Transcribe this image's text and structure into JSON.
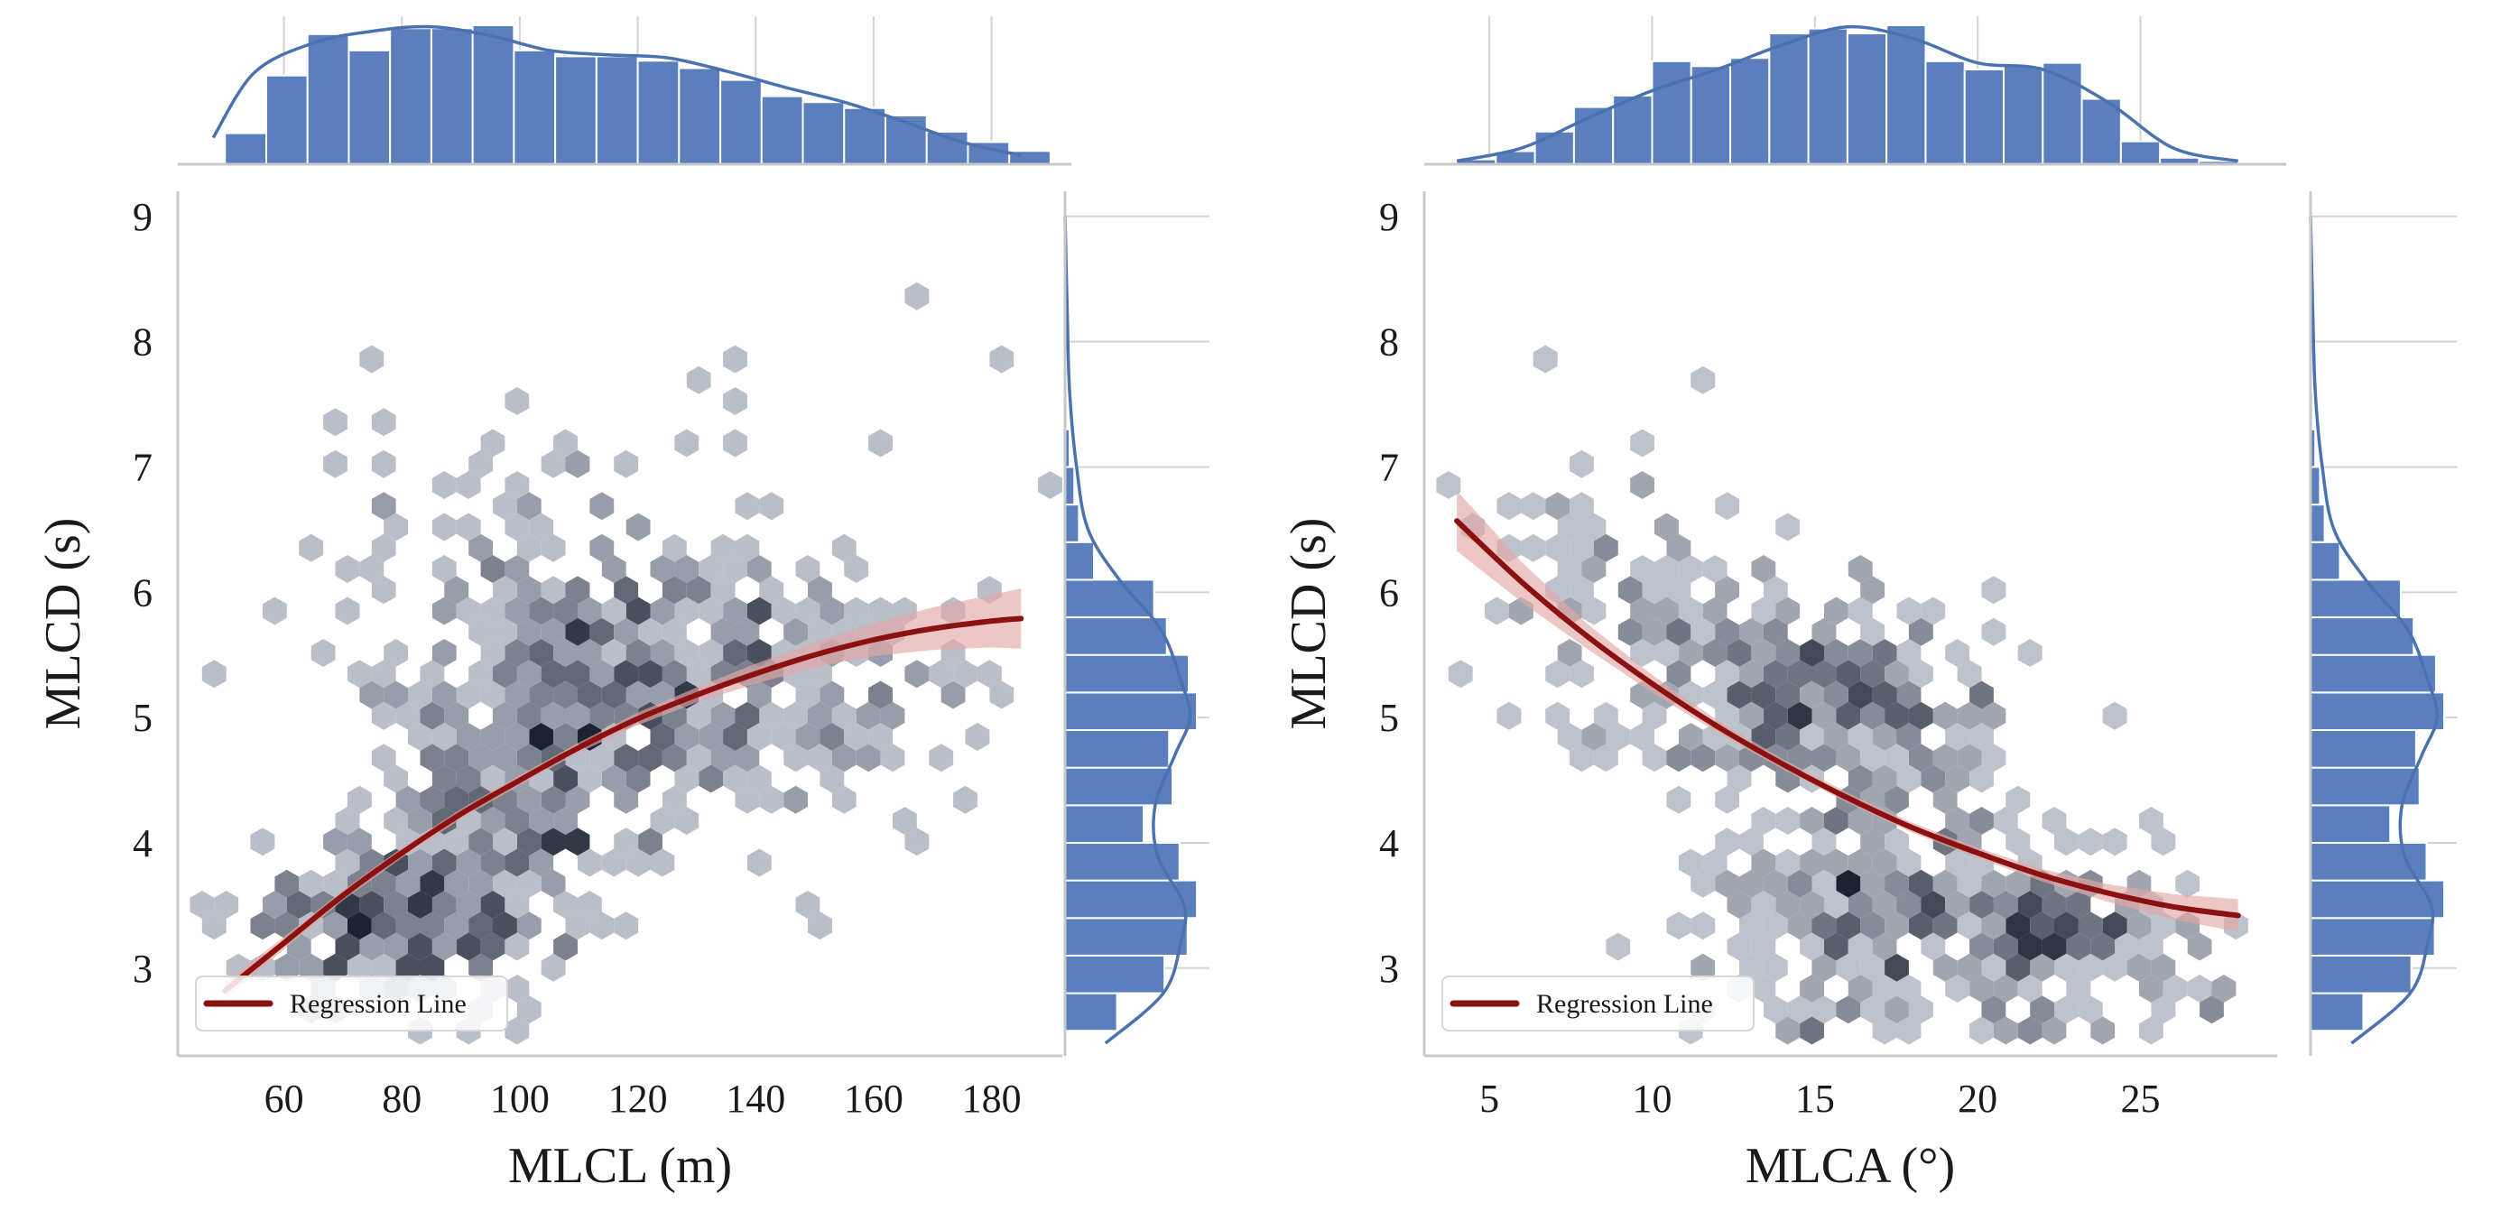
{
  "colors": {
    "hex_light": "#e8edf6",
    "hex_dark": "#1c2230",
    "hist_fill": "#5b7fbc",
    "kde_line": "#4b72b0",
    "regression": "#8b1111",
    "ci_band": "#e3a7a7",
    "grid": "#d3d3d3",
    "spine": "#c8c8c8"
  },
  "chart_data": [
    {
      "type": "heatmap",
      "subtype": "hexbin-jointplot",
      "xlabel": "MLCL (m)",
      "ylabel": "MLCD (s)",
      "xlim": [
        42,
        192
      ],
      "ylim": [
        2.3,
        9.2
      ],
      "xticks": [
        60,
        80,
        100,
        120,
        140,
        160,
        180
      ],
      "yticks": [
        3,
        4,
        5,
        6,
        7,
        8,
        9
      ],
      "grid": false,
      "legend_position": "lower-left",
      "legend": [
        "Regression Line"
      ],
      "regression": {
        "type": "quadratic",
        "x": [
          50,
          60,
          70,
          80,
          90,
          100,
          110,
          120,
          130,
          140,
          150,
          160,
          170,
          180,
          185
        ],
        "y": [
          2.82,
          3.2,
          3.58,
          3.92,
          4.23,
          4.5,
          4.76,
          4.99,
          5.18,
          5.35,
          5.5,
          5.62,
          5.71,
          5.77,
          5.79
        ],
        "ci_halfwidth": [
          0.07,
          0.05,
          0.04,
          0.04,
          0.04,
          0.04,
          0.04,
          0.05,
          0.06,
          0.08,
          0.1,
          0.13,
          0.17,
          0.21,
          0.24
        ]
      },
      "marginal_x": {
        "bins": [
          50,
          57,
          64,
          71,
          78,
          85,
          92,
          99,
          106,
          113,
          120,
          127,
          134,
          141,
          148,
          155,
          162,
          169,
          176,
          183
        ],
        "counts": [
          21,
          60,
          88,
          77,
          92,
          92,
          94,
          77,
          73,
          73,
          70,
          65,
          57,
          46,
          42,
          38,
          33,
          22,
          15,
          9
        ],
        "kde_x": [
          48,
          55,
          65,
          75,
          85,
          95,
          105,
          115,
          125,
          135,
          145,
          155,
          165,
          175,
          185
        ],
        "kde_y": [
          18,
          62,
          82,
          90,
          93,
          87,
          77,
          74,
          72,
          63,
          52,
          42,
          29,
          15,
          6
        ]
      },
      "marginal_y": {
        "bins": [
          2.5,
          2.8,
          3.1,
          3.4,
          3.7,
          4.0,
          4.3,
          4.6,
          4.9,
          5.2,
          5.5,
          5.8,
          6.1,
          6.4,
          6.7,
          7.0,
          7.3,
          7.6,
          8.0,
          8.4
        ],
        "counts": [
          45,
          86,
          106,
          114,
          99,
          68,
          93,
          90,
          114,
          107,
          88,
          77,
          25,
          12,
          8,
          4,
          2,
          1,
          1,
          1
        ],
        "kde_y": [
          2.4,
          2.8,
          3.2,
          3.5,
          3.9,
          4.3,
          4.7,
          5.0,
          5.3,
          5.7,
          6.1,
          6.5,
          7.0,
          7.6,
          8.2,
          9.0
        ],
        "kde_x": [
          35,
          85,
          100,
          103,
          80,
          78,
          95,
          108,
          100,
          83,
          47,
          20,
          10,
          4,
          2,
          0
        ]
      },
      "hexbin": {
        "clusters": [
          {
            "x": 80,
            "y": 3.35,
            "sx": 14,
            "sy": 0.38,
            "n": 230
          },
          {
            "x": 115,
            "y": 5.3,
            "sx": 17,
            "sy": 0.5,
            "n": 240
          },
          {
            "x": 100,
            "y": 4.3,
            "sx": 12,
            "sy": 0.45,
            "n": 120
          },
          {
            "x": 148,
            "y": 5.2,
            "sx": 18,
            "sy": 0.55,
            "n": 120
          },
          {
            "x": 105,
            "y": 6.3,
            "sx": 25,
            "sy": 0.7,
            "n": 70
          },
          {
            "x": 140,
            "y": 7.2,
            "sx": 30,
            "sy": 0.8,
            "n": 20
          }
        ]
      }
    },
    {
      "type": "heatmap",
      "subtype": "hexbin-jointplot",
      "xlabel": "MLCA (°)",
      "ylabel": "MLCD (s)",
      "xlim": [
        3,
        29.2
      ],
      "ylim": [
        2.3,
        9.2
      ],
      "xticks": [
        5,
        10,
        15,
        20,
        25
      ],
      "yticks": [
        3,
        4,
        5,
        6,
        7,
        8,
        9
      ],
      "grid": false,
      "legend_position": "lower-left",
      "legend": [
        "Regression Line"
      ],
      "regression": {
        "type": "quadratic",
        "x": [
          4,
          6,
          8,
          10,
          12,
          14,
          16,
          18,
          20,
          22,
          24,
          26,
          28
        ],
        "y": [
          6.57,
          6.08,
          5.65,
          5.27,
          4.93,
          4.63,
          4.36,
          4.12,
          3.92,
          3.74,
          3.6,
          3.49,
          3.42
        ],
        "ci_halfwidth": [
          0.24,
          0.16,
          0.1,
          0.07,
          0.05,
          0.04,
          0.04,
          0.04,
          0.04,
          0.05,
          0.07,
          0.1,
          0.13
        ]
      },
      "marginal_x": {
        "bins": [
          4,
          5.2,
          6.4,
          7.6,
          8.8,
          10,
          11.2,
          12.4,
          13.6,
          14.8,
          16,
          17.2,
          18.4,
          19.6,
          20.8,
          22,
          23.2,
          24.4,
          25.6,
          26.8
        ],
        "counts": [
          3,
          8,
          20,
          35,
          42,
          63,
          60,
          65,
          80,
          83,
          80,
          85,
          63,
          58,
          60,
          62,
          40,
          14,
          4,
          2
        ],
        "kde_x": [
          4,
          6,
          8,
          10,
          12,
          14,
          16,
          18,
          20,
          22,
          24,
          26,
          28
        ],
        "kde_y": [
          2,
          10,
          28,
          45,
          58,
          73,
          84,
          77,
          62,
          58,
          38,
          10,
          2
        ]
      },
      "marginal_y": {
        "bins": [
          2.5,
          2.8,
          3.1,
          3.4,
          3.7,
          4.0,
          4.3,
          4.6,
          4.9,
          5.2,
          5.5,
          5.8,
          6.1,
          6.4,
          6.7,
          7.0,
          7.3,
          7.6,
          8.0,
          8.4
        ],
        "counts": [
          45,
          86,
          106,
          114,
          99,
          68,
          93,
          90,
          114,
          107,
          88,
          77,
          25,
          12,
          8,
          4,
          2,
          1,
          1,
          1
        ],
        "kde_y": [
          2.4,
          2.8,
          3.2,
          3.5,
          3.9,
          4.3,
          4.7,
          5.0,
          5.3,
          5.7,
          6.1,
          6.5,
          7.0,
          7.6,
          8.2,
          9.0
        ],
        "kde_x": [
          35,
          85,
          100,
          103,
          80,
          78,
          95,
          108,
          100,
          83,
          47,
          20,
          10,
          4,
          2,
          0
        ]
      },
      "hexbin": {
        "clusters": [
          {
            "x": 13.5,
            "y": 5.4,
            "sx": 2.6,
            "sy": 0.45,
            "n": 190
          },
          {
            "x": 17.5,
            "y": 4.8,
            "sx": 2.0,
            "sy": 0.5,
            "n": 120
          },
          {
            "x": 16.5,
            "y": 3.4,
            "sx": 2.8,
            "sy": 0.4,
            "n": 160
          },
          {
            "x": 22.5,
            "y": 3.3,
            "sx": 2.0,
            "sy": 0.35,
            "n": 130
          },
          {
            "x": 8.5,
            "y": 6.0,
            "sx": 2.5,
            "sy": 0.8,
            "n": 60
          },
          {
            "x": 20,
            "y": 2.8,
            "sx": 4.5,
            "sy": 0.3,
            "n": 70
          }
        ]
      }
    }
  ]
}
